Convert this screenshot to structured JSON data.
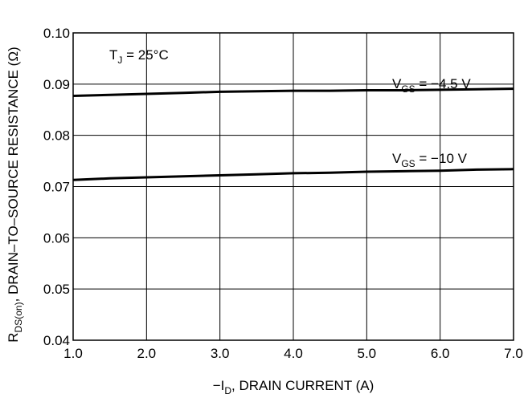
{
  "chart_data": {
    "type": "line",
    "title": "",
    "xlabel": {
      "prefix": "−I",
      "sub": "D",
      "suffix": ", DRAIN CURRENT (A)"
    },
    "ylabel": {
      "prefix": "R",
      "sub": "DS(on)",
      "suffix": ", DRAIN–TO–SOURCE RESISTANCE (Ω)"
    },
    "xlim": [
      1.0,
      7.0
    ],
    "ylim": [
      0.04,
      0.1
    ],
    "x_ticks": [
      1.0,
      2.0,
      3.0,
      4.0,
      5.0,
      6.0,
      7.0
    ],
    "x_tick_labels": [
      "1.0",
      "2.0",
      "3.0",
      "4.0",
      "5.0",
      "6.0",
      "7.0"
    ],
    "y_ticks": [
      0.04,
      0.05,
      0.06,
      0.07,
      0.08,
      0.09,
      0.1
    ],
    "y_tick_labels": [
      "0.04",
      "0.05",
      "0.06",
      "0.07",
      "0.08",
      "0.09",
      "0.10"
    ],
    "grid": true,
    "annotations": [
      {
        "prefix": "T",
        "sub": "J",
        "suffix": " = 25°C"
      }
    ],
    "series": [
      {
        "label": {
          "prefix": "V",
          "sub": "GS",
          "suffix": " = −4.5 V"
        },
        "x": [
          1.0,
          1.5,
          2.0,
          2.5,
          3.0,
          3.5,
          4.0,
          4.5,
          5.0,
          5.5,
          6.0,
          6.5,
          7.0
        ],
        "y": [
          0.0877,
          0.0879,
          0.0881,
          0.0883,
          0.0885,
          0.0886,
          0.0887,
          0.0887,
          0.0888,
          0.0888,
          0.0889,
          0.089,
          0.0891
        ]
      },
      {
        "label": {
          "prefix": "V",
          "sub": "GS",
          "suffix": " = −10 V"
        },
        "x": [
          1.0,
          1.5,
          2.0,
          2.5,
          3.0,
          3.5,
          4.0,
          4.5,
          5.0,
          5.5,
          6.0,
          6.5,
          7.0
        ],
        "y": [
          0.0713,
          0.0716,
          0.0718,
          0.072,
          0.0722,
          0.0724,
          0.0726,
          0.0727,
          0.0729,
          0.073,
          0.0731,
          0.0733,
          0.0734
        ]
      }
    ],
    "line_color": "#000000",
    "grid_color": "#000000"
  }
}
